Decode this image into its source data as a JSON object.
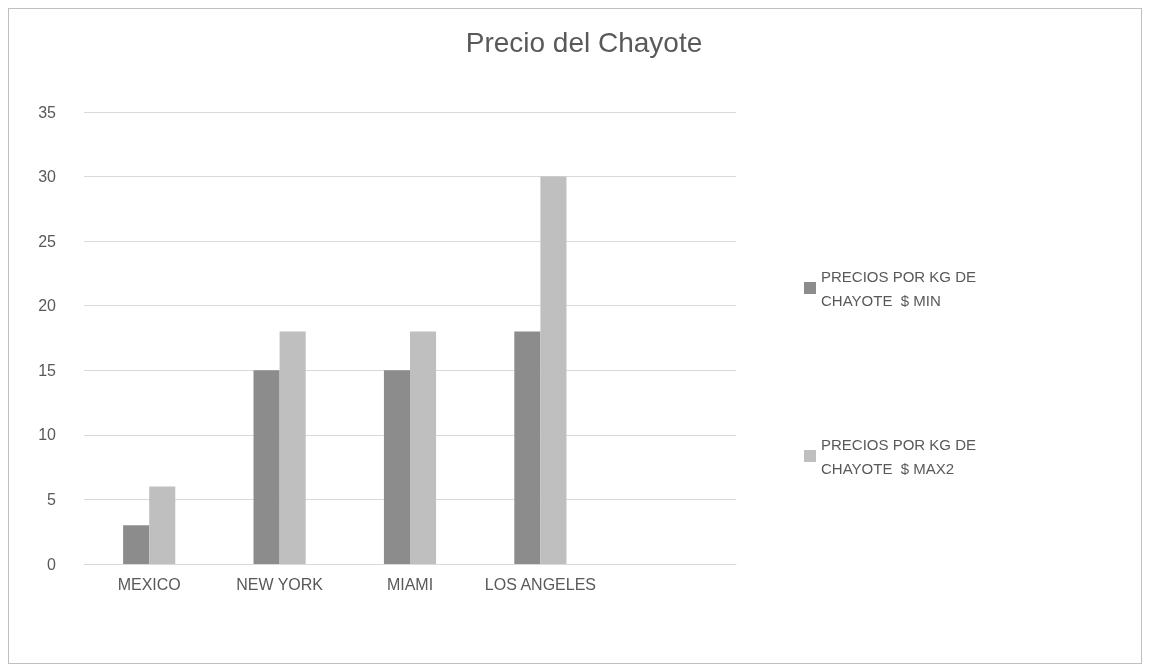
{
  "chart_data": {
    "type": "bar",
    "title": "Precio del Chayote",
    "categories": [
      "MEXICO",
      "NEW YORK",
      "MIAMI",
      "LOS ANGELES",
      null
    ],
    "series": [
      {
        "name": "PRECIOS POR KG DE CHAYOTE  $ MIN",
        "color": "#8c8c8c",
        "values": [
          3,
          15,
          15,
          18,
          null
        ]
      },
      {
        "name": "PRECIOS POR KG DE CHAYOTE  $ MAX2",
        "color": "#bfbfbf",
        "values": [
          6,
          18,
          18,
          30,
          null
        ]
      }
    ],
    "ylim": [
      0,
      35
    ],
    "yticks": [
      0,
      5,
      10,
      15,
      20,
      25,
      30,
      35
    ],
    "grid": "y",
    "legend": "right"
  }
}
